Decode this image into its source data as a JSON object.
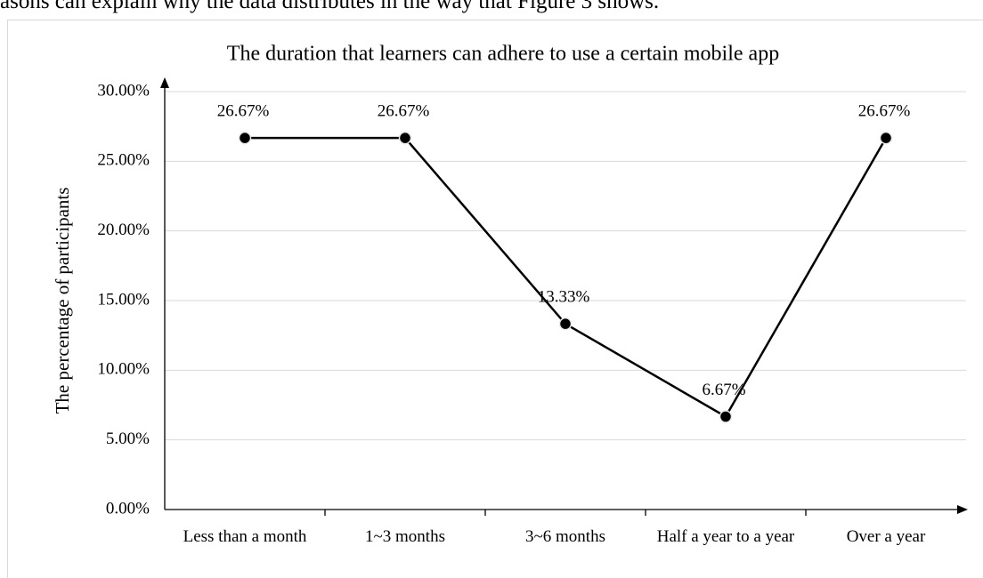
{
  "context_text": "asons can explain why the data distributes in the way that Figure 3 shows.",
  "chart_data": {
    "type": "line",
    "title": "The duration that learners can adhere to use a certain mobile app",
    "y_label": "The percentage of participants",
    "categories": [
      "Less than a month",
      "1~3 months",
      "3~6 months",
      "Half a year to a year",
      "Over a year"
    ],
    "values": [
      26.67,
      26.67,
      13.33,
      6.67,
      26.67
    ],
    "value_labels": [
      "26.67%",
      "26.67%",
      "13.33%",
      "6.67%",
      "26.67%"
    ],
    "color": "#000000",
    "ylim": [
      0,
      30
    ],
    "yticks": [
      {
        "value": 0,
        "label": "0.00%"
      },
      {
        "value": 5,
        "label": "5.00%"
      },
      {
        "value": 10,
        "label": "10.00%"
      },
      {
        "value": 15,
        "label": "15.00%"
      },
      {
        "value": 20,
        "label": "20.00%"
      },
      {
        "value": 25,
        "label": "25.00%"
      },
      {
        "value": 30,
        "label": "30.00%"
      }
    ],
    "grid": true
  }
}
